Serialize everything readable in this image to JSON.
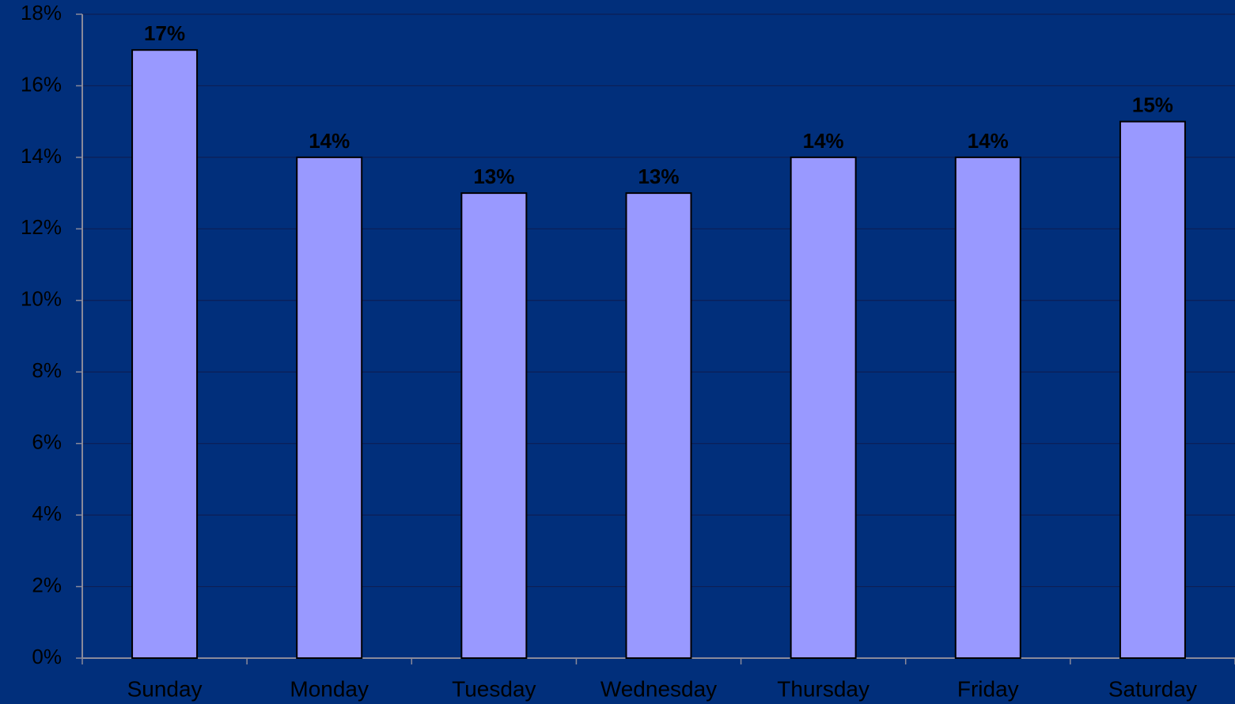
{
  "chart_data": {
    "type": "bar",
    "categories": [
      "Sunday",
      "Monday",
      "Tuesday",
      "Wednesday",
      "Thursday",
      "Friday",
      "Saturday"
    ],
    "values": [
      17,
      14,
      13,
      13,
      14,
      14,
      15
    ],
    "value_labels": [
      "17%",
      "14%",
      "13%",
      "13%",
      "14%",
      "14%",
      "15%"
    ],
    "color": "#9999ff",
    "ylim": [
      0,
      18
    ],
    "yticks": [
      {
        "value": 0,
        "label": "0%"
      },
      {
        "value": 2,
        "label": "2%"
      },
      {
        "value": 4,
        "label": "4%"
      },
      {
        "value": 6,
        "label": "6%"
      },
      {
        "value": 8,
        "label": "8%"
      },
      {
        "value": 10,
        "label": "10%"
      },
      {
        "value": 12,
        "label": "12%"
      },
      {
        "value": 14,
        "label": "14%"
      },
      {
        "value": 16,
        "label": "16%"
      },
      {
        "value": 18,
        "label": "18%"
      }
    ],
    "grid": true
  }
}
